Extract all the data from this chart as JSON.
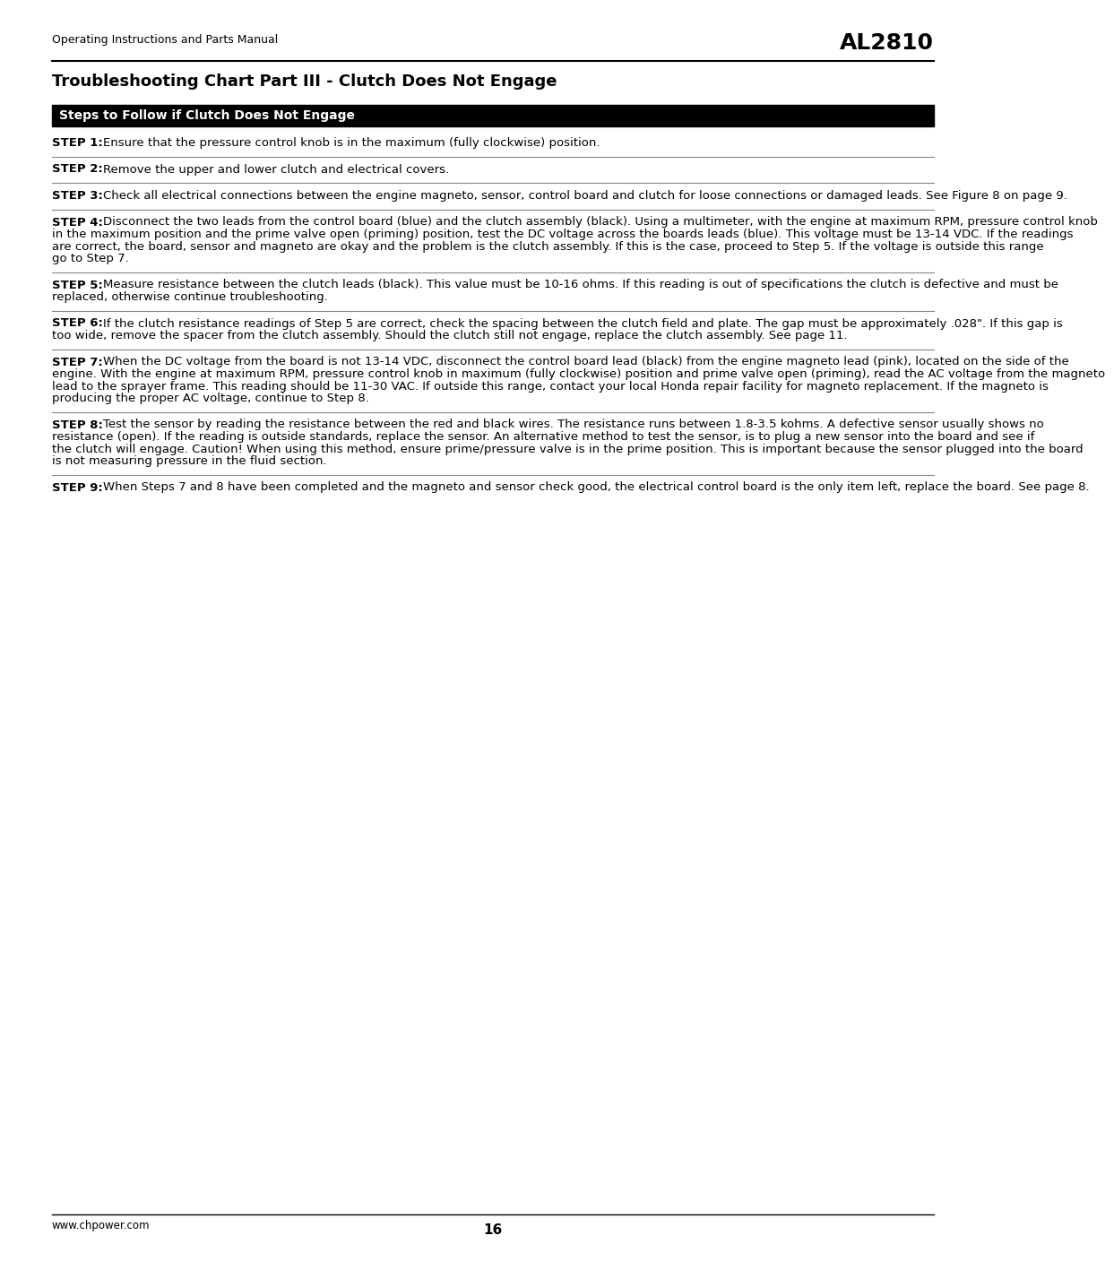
{
  "page_header_left": "Operating Instructions and Parts Manual",
  "page_header_right": "AL2810",
  "title": "Troubleshooting Chart Part III - Clutch Does Not Engage",
  "section_header": "Steps to Follow if Clutch Does Not Engage",
  "steps": [
    {
      "label": "STEP 1:",
      "text": " Ensure that the pressure control knob is in the maximum (fully clockwise) position."
    },
    {
      "label": "STEP 2:",
      "text": " Remove the upper and lower clutch and electrical covers."
    },
    {
      "label": "STEP 3:",
      "text": " Check all electrical connections between the engine magneto, sensor, control board and clutch for loose connections or damaged leads. See Figure 8 on page 9."
    },
    {
      "label": "STEP 4:",
      "text": "  Disconnect the two leads from the control board (blue) and the clutch assembly (black). Using a multimeter, with the engine at maximum RPM, pressure control knob in the maximum position and the prime valve open (priming) position, test the DC voltage across the boards leads (blue). This voltage must be 13-14 VDC. If the readings are correct, the board, sensor and magneto are okay and the problem is the clutch assembly. If this is the case, proceed to Step 5. If the voltage is outside this range go to Step 7."
    },
    {
      "label": "STEP 5:",
      "text": " Measure resistance between the clutch leads (black). This value must be 10-16 ohms. If this reading is out of specifications the clutch is defective and must be replaced, otherwise continue troubleshooting."
    },
    {
      "label": "STEP 6:",
      "text": " If the clutch resistance readings of Step 5 are correct, check the spacing between the clutch field and plate. The gap must be approximately .028\". If this gap is too wide, remove the spacer from the clutch assembly. Should the clutch still not engage, replace the clutch assembly. See page 11."
    },
    {
      "label": "STEP 7:",
      "text": " When the DC voltage from the board is not 13-14 VDC, disconnect the control board lead (black) from the engine magneto lead (pink), located on the side of the engine. With the engine at maximum RPM, pressure control knob in maximum (fully clockwise) position and prime valve open (priming), read the AC voltage from the magneto lead to the sprayer frame. This reading should be 11-30 VAC. If outside this range, contact your local Honda repair facility for magneto replacement. If the magneto is producing the proper AC voltage, continue to Step 8."
    },
    {
      "label": "STEP 8:",
      "text": " Test the sensor by reading the resistance between the red and black wires. The resistance runs between 1.8-3.5 kohms. A defective sensor usually shows no resistance (open). If the reading is outside standards, replace the sensor. An alternative method to test the sensor, is to plug a new sensor into the board and see if the clutch will engage. Caution! When using this method, ensure prime/pressure valve is in the prime position.  This is important because the sensor plugged into the board is not measuring pressure in the fluid section."
    },
    {
      "label": "STEP 9:",
      "text": " When Steps 7 and 8 have been completed and the magneto and sensor check good, the electrical control board is the only item left, replace the board. See page 8."
    }
  ],
  "footer_left": "www.chpower.com",
  "footer_page": "16",
  "bg_color": "#ffffff",
  "header_line_color": "#000000",
  "section_bg_color": "#000000",
  "section_text_color": "#ffffff",
  "step_divider_color": "#888888",
  "text_color": "#000000",
  "fontsize": 9.5,
  "title_fontsize": 13,
  "header_fontsize": 9,
  "al_fontsize": 18,
  "section_fontsize": 10,
  "footer_fontsize": 8.5,
  "page_num_fontsize": 11
}
